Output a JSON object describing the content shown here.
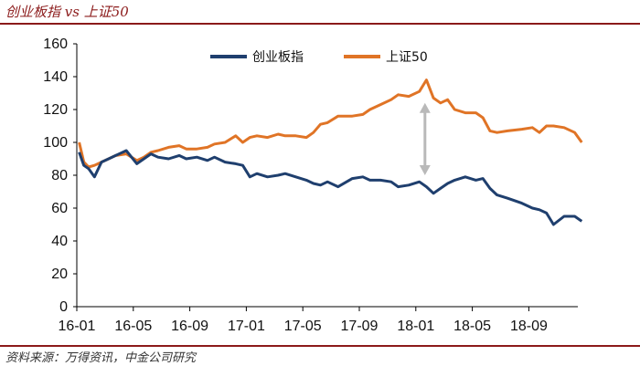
{
  "header": {
    "title": "创业板指 vs 上证50"
  },
  "footer": {
    "source": "资料来源：万得资讯，中金公司研究"
  },
  "colors": {
    "series1": "#1f3f6e",
    "series2": "#e07426",
    "arrow": "#b9b9b9",
    "accent": "#8b1a1a"
  },
  "chart_data": {
    "type": "line",
    "x_tick_labels": [
      "16-01",
      "16-05",
      "16-09",
      "17-01",
      "17-05",
      "17-09",
      "18-01",
      "18-05",
      "18-09"
    ],
    "ylim": [
      0,
      160
    ],
    "yticks": [
      0,
      20,
      40,
      60,
      80,
      100,
      120,
      140,
      160
    ],
    "grid": false,
    "legend_position": "top-center",
    "annotation": "double-headed arrow between series near 18-01",
    "series": [
      {
        "name": "创业板指",
        "x": [
          "16-01",
          "16-01",
          "16-01",
          "16-02",
          "16-02",
          "16-03",
          "16-03",
          "16-04",
          "16-05",
          "16-05",
          "16-06",
          "16-06",
          "16-07",
          "16-08",
          "16-08",
          "16-09",
          "16-10",
          "16-10",
          "16-11",
          "16-12",
          "16-12",
          "17-01",
          "17-01",
          "17-02",
          "17-03",
          "17-03",
          "17-04",
          "17-05",
          "17-05",
          "17-06",
          "17-06",
          "17-07",
          "17-08",
          "17-09",
          "17-09",
          "17-10",
          "17-11",
          "17-11",
          "17-12",
          "18-01",
          "18-01",
          "18-02",
          "18-02",
          "18-03",
          "18-03",
          "18-04",
          "18-05",
          "18-05",
          "18-06",
          "18-06",
          "18-07",
          "18-08",
          "18-09",
          "18-09",
          "18-10",
          "18-10",
          "18-11",
          "18-12",
          "18-12"
        ],
        "y": [
          94,
          86,
          84,
          79,
          88,
          90,
          92,
          95,
          87,
          90,
          93,
          91,
          90,
          92,
          90,
          91,
          89,
          91,
          88,
          87,
          86,
          79,
          81,
          79,
          80,
          81,
          79,
          77,
          75,
          74,
          76,
          73,
          78,
          79,
          77,
          77,
          76,
          73,
          74,
          76,
          73,
          69,
          72,
          75,
          77,
          79,
          77,
          78,
          72,
          68,
          66,
          63,
          60,
          59,
          57,
          50,
          55,
          55,
          52
        ]
      },
      {
        "name": "上证50",
        "x": [
          "16-01",
          "16-01",
          "16-01",
          "16-02",
          "16-02",
          "16-03",
          "16-03",
          "16-04",
          "16-05",
          "16-05",
          "16-06",
          "16-06",
          "16-07",
          "16-08",
          "16-08",
          "16-09",
          "16-10",
          "16-10",
          "16-11",
          "16-12",
          "16-12",
          "17-01",
          "17-01",
          "17-02",
          "17-03",
          "17-03",
          "17-04",
          "17-05",
          "17-05",
          "17-06",
          "17-06",
          "17-07",
          "17-08",
          "17-09",
          "17-09",
          "17-10",
          "17-11",
          "17-11",
          "17-12",
          "18-01",
          "18-01",
          "18-02",
          "18-02",
          "18-03",
          "18-03",
          "18-04",
          "18-05",
          "18-05",
          "18-06",
          "18-06",
          "18-07",
          "18-08",
          "18-09",
          "18-09",
          "18-10",
          "18-10",
          "18-11",
          "18-12",
          "18-12"
        ],
        "y": [
          100,
          88,
          85,
          86,
          88,
          90,
          92,
          93,
          89,
          91,
          94,
          95,
          97,
          98,
          96,
          96,
          97,
          99,
          100,
          104,
          100,
          103,
          104,
          103,
          105,
          104,
          104,
          103,
          106,
          111,
          112,
          116,
          116,
          117,
          120,
          123,
          126,
          129,
          128,
          131,
          138,
          127,
          124,
          126,
          120,
          118,
          118,
          115,
          107,
          106,
          107,
          108,
          109,
          106,
          110,
          110,
          109,
          106,
          100
        ]
      }
    ]
  }
}
